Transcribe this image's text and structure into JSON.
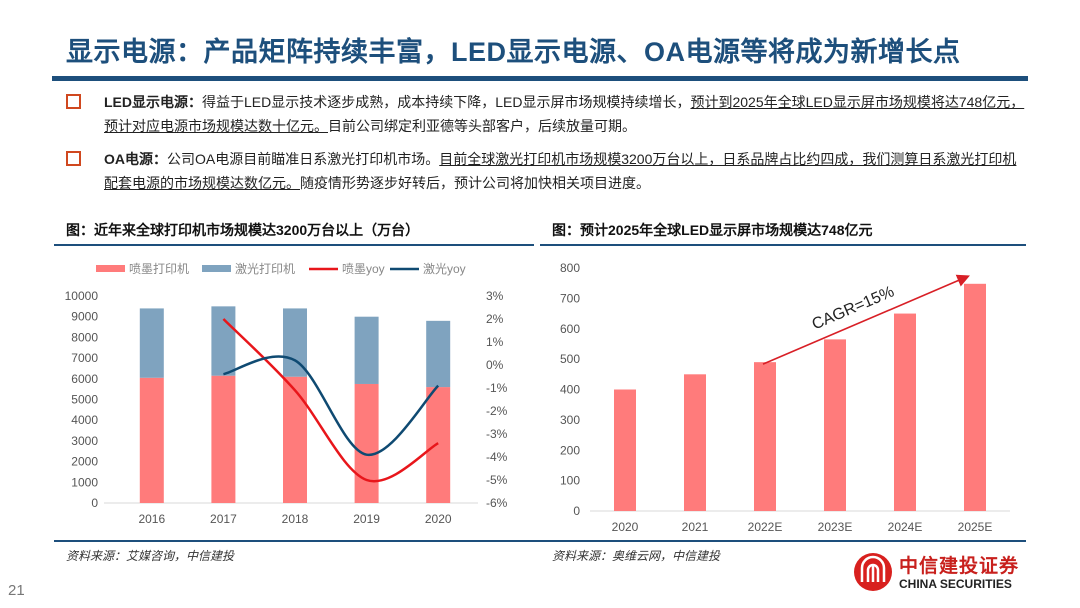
{
  "header": {
    "title": "显示电源：产品矩阵持续丰富，LED显示电源、OA电源等将成为新增长点"
  },
  "bullets": [
    {
      "lead": "LED显示电源：",
      "plain1": "得益于LED显示技术逐步成熟，成本持续下降，LED显示屏市场规模持续增长，",
      "underlined": "预计到2025年全球LED显示屏市场规模将达748亿元，预计对应电源市场规模达数十亿元。",
      "plain2": "目前公司绑定利亚德等头部客户，后续放量可期。"
    },
    {
      "lead": "OA电源：",
      "plain1": "公司OA电源目前瞄准日系激光打印机市场。",
      "underlined": "目前全球激光打印机市场规模3200万台以上，日系品牌占比约四成，我们测算日系激光打印机配套电源的市场规模达数亿元。",
      "plain2": "随疫情形势逐步好转后，预计公司将加快相关项目进度。"
    }
  ],
  "figures": {
    "left_title": "图：近年来全球打印机市场规模达3200万台以上（万台）",
    "left_source": "资料来源：艾媒咨询，中信建投",
    "right_title": "图：预计2025年全球LED显示屏市场规模达748亿元",
    "right_source": "资料来源：奥维云网，中信建投"
  },
  "footer": {
    "page_number": "21",
    "logo_cn": "中信建投证券",
    "logo_en": "CHINA SECURITIES"
  },
  "colors": {
    "brand_blue": "#1d4f7c",
    "inkjet": "#ff7b7b",
    "laser": "#7fa3bf",
    "inkjet_yoy": "#e8161b",
    "laser_yoy": "#0f4a72",
    "led_bar": "#ff7b7b",
    "cagr_arrow": "#d81f26",
    "bullet_square": "#d0481f"
  },
  "chart_data": [
    {
      "type": "bar",
      "stacked": true,
      "title": "近年来全球打印机市场规模达3200万台以上（万台）",
      "categories": [
        "2016",
        "2017",
        "2018",
        "2019",
        "2020"
      ],
      "series": [
        {
          "name": "喷墨打印机",
          "kind": "bar",
          "axis": "left",
          "values": [
            6050,
            6150,
            6100,
            5750,
            5600
          ]
        },
        {
          "name": "激光打印机",
          "kind": "bar",
          "axis": "left",
          "values": [
            3350,
            3350,
            3300,
            3250,
            3200
          ]
        },
        {
          "name": "喷墨yoy",
          "kind": "line",
          "axis": "right",
          "values": [
            null,
            2.0,
            -1.1,
            -5.0,
            -3.4
          ]
        },
        {
          "name": "激光yoy",
          "kind": "line",
          "axis": "right",
          "values": [
            null,
            -0.4,
            0.2,
            -3.9,
            -0.9
          ]
        }
      ],
      "legend": [
        "喷墨打印机",
        "激光打印机",
        "喷墨yoy",
        "激光yoy"
      ],
      "legend_position": "top",
      "ylim": [
        0,
        10000
      ],
      "yticks": [
        "0",
        "1000",
        "2000",
        "3000",
        "4000",
        "5000",
        "6000",
        "7000",
        "8000",
        "9000",
        "10000"
      ],
      "y2lim": [
        -6,
        3
      ],
      "y2ticks": [
        "-6%",
        "-5%",
        "-4%",
        "-3%",
        "-2%",
        "-1%",
        "0%",
        "1%",
        "2%",
        "3%"
      ],
      "grid": false
    },
    {
      "type": "bar",
      "title": "预计2025年全球LED显示屏市场规模达748亿元",
      "categories": [
        "2020",
        "2021",
        "2022E",
        "2023E",
        "2024E",
        "2025E"
      ],
      "values": [
        400,
        450,
        490,
        565,
        650,
        748
      ],
      "ylim": [
        0,
        800
      ],
      "yticks": [
        "0",
        "100",
        "200",
        "300",
        "400",
        "500",
        "600",
        "700",
        "800"
      ],
      "annotation": {
        "text": "CAGR=15%",
        "from": "2022E",
        "to": "2025E"
      },
      "grid": false
    }
  ]
}
